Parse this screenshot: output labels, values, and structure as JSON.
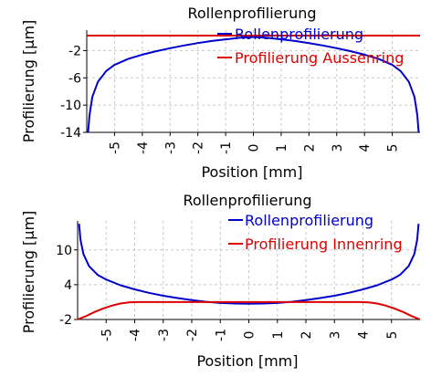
{
  "chart_data": [
    {
      "type": "line",
      "title": "Rollenprofilierung",
      "xlabel": "Position [mm]",
      "ylabel": "Profilierung [µm]",
      "xlim": [
        -6,
        6
      ],
      "ylim": [
        -14,
        1
      ],
      "xticks": [
        "-5",
        "-4",
        "-3",
        "-2",
        "-1",
        "0",
        "1",
        "2",
        "3",
        "4",
        "5"
      ],
      "yticks": [
        "-2",
        "-6",
        "-10",
        "-14"
      ],
      "grid": true,
      "legend_position": "top-right",
      "series": [
        {
          "name": "Rollenprofilierung",
          "color": "#0000cc",
          "x": [
            -5.95,
            -5.9,
            -5.8,
            -5.6,
            -5.3,
            -5.0,
            -4.5,
            -4.0,
            -3.5,
            -3.0,
            -2.5,
            -2.0,
            -1.5,
            -1.0,
            -0.5,
            0.0,
            0.5,
            1.0,
            1.5,
            2.0,
            2.5,
            3.0,
            3.5,
            4.0,
            4.5,
            5.0,
            5.3,
            5.6,
            5.8,
            5.9,
            5.95
          ],
          "y": [
            -14.0,
            -11.5,
            -8.8,
            -6.6,
            -5.0,
            -4.1,
            -3.2,
            -2.6,
            -2.1,
            -1.65,
            -1.25,
            -0.9,
            -0.6,
            -0.35,
            -0.12,
            0.0,
            -0.12,
            -0.35,
            -0.6,
            -0.9,
            -1.25,
            -1.65,
            -2.1,
            -2.6,
            -3.2,
            -4.1,
            -5.0,
            -6.6,
            -8.8,
            -11.5,
            -14.0
          ]
        },
        {
          "name": "Profilierung Aussenring",
          "color": "#dd0000",
          "x": [
            -6.0,
            6.0
          ],
          "y": [
            0.2,
            0.2
          ]
        }
      ]
    },
    {
      "type": "line",
      "title": "Rollenprofilierung",
      "xlabel": "Position [mm]",
      "ylabel": "Profilierung [µm]",
      "xlim": [
        -6,
        6
      ],
      "ylim": [
        -2,
        15
      ],
      "xticks": [
        "-5",
        "-4",
        "-3",
        "-2",
        "-1",
        "0",
        "1",
        "2",
        "3",
        "4",
        "5"
      ],
      "yticks": [
        "10",
        "4",
        "-2"
      ],
      "grid": true,
      "legend_position": "top-right",
      "series": [
        {
          "name": "Rollenprofilierung",
          "color": "#0000cc",
          "x": [
            -5.95,
            -5.9,
            -5.8,
            -5.6,
            -5.3,
            -5.0,
            -4.5,
            -4.0,
            -3.5,
            -3.0,
            -2.5,
            -2.0,
            -1.5,
            -1.0,
            -0.5,
            0.0,
            0.5,
            1.0,
            1.5,
            2.0,
            2.5,
            3.0,
            3.5,
            4.0,
            4.5,
            5.0,
            5.3,
            5.6,
            5.8,
            5.9,
            5.95
          ],
          "y": [
            14.5,
            11.8,
            9.3,
            7.2,
            5.7,
            4.9,
            3.9,
            3.2,
            2.6,
            2.1,
            1.7,
            1.35,
            1.05,
            0.85,
            0.75,
            0.7,
            0.75,
            0.85,
            1.05,
            1.35,
            1.7,
            2.1,
            2.6,
            3.2,
            3.9,
            4.9,
            5.7,
            7.2,
            9.3,
            11.8,
            14.5
          ]
        },
        {
          "name": "Profilierung Innenring",
          "color": "#dd0000",
          "x": [
            -6.0,
            -5.7,
            -5.4,
            -5.1,
            -4.8,
            -4.5,
            -4.2,
            -3.9,
            -3.0,
            -2.0,
            -1.0,
            0.0,
            1.0,
            2.0,
            3.0,
            3.9,
            4.2,
            4.5,
            4.8,
            5.1,
            5.4,
            5.7,
            6.0
          ],
          "y": [
            -2.0,
            -1.4,
            -0.7,
            -0.1,
            0.4,
            0.75,
            0.95,
            1.0,
            1.0,
            1.0,
            1.0,
            1.0,
            1.0,
            1.0,
            1.0,
            1.0,
            0.95,
            0.75,
            0.4,
            -0.1,
            -0.7,
            -1.4,
            -2.0
          ]
        }
      ]
    }
  ]
}
